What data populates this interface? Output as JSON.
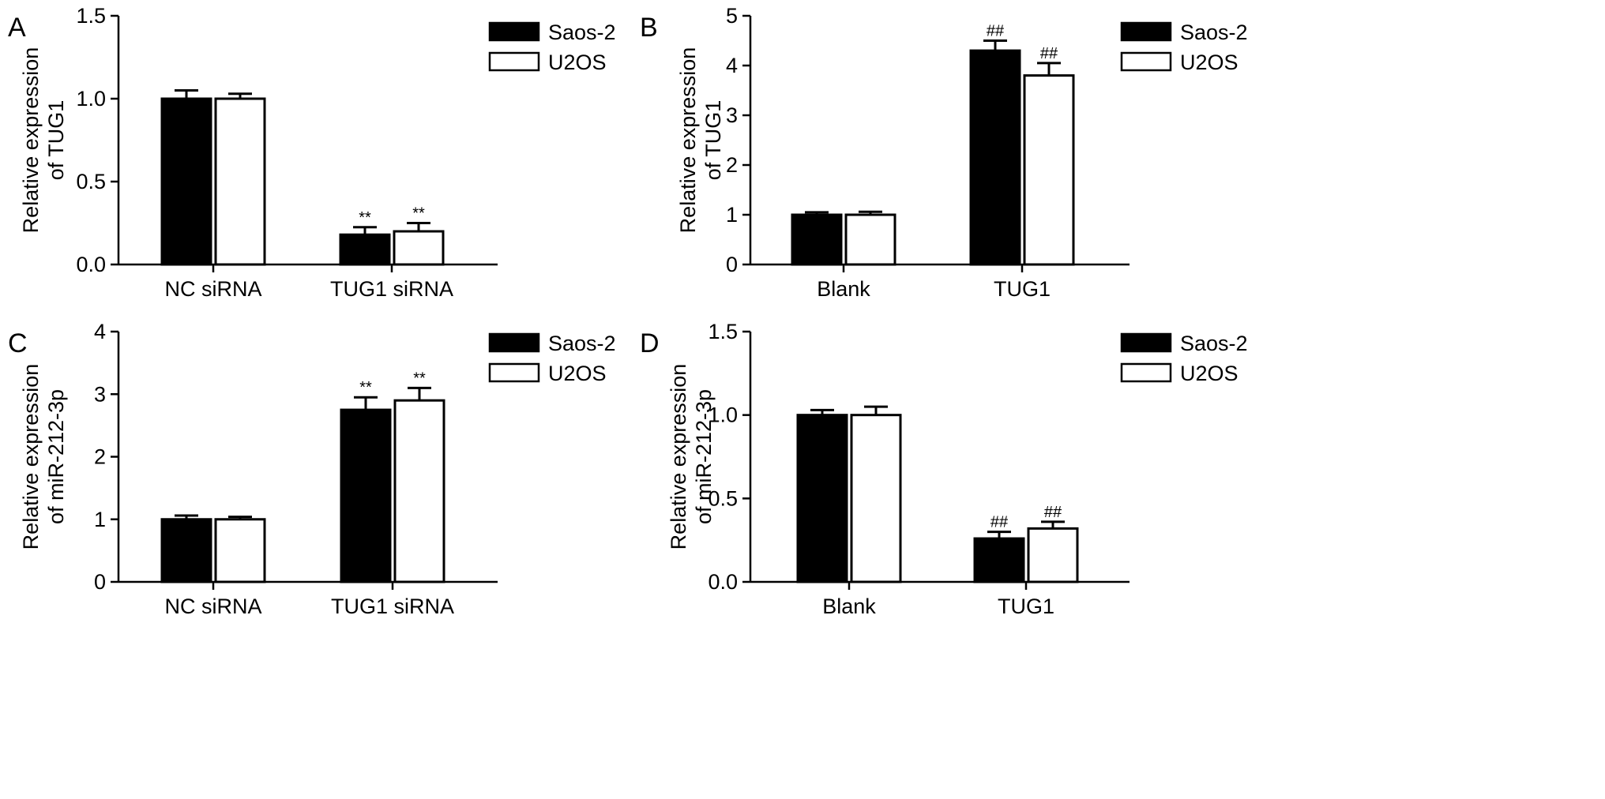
{
  "figure": {
    "panels": [
      {
        "panel_label": "A",
        "chart_data": {
          "type": "bar",
          "categories": [
            "NC siRNA",
            "TUG1 siRNA"
          ],
          "series": [
            {
              "name": "Saos-2",
              "values": [
                1.0,
                0.18
              ],
              "errors": [
                0.05,
                0.045
              ],
              "annotations": [
                "",
                "**"
              ]
            },
            {
              "name": "U2OS",
              "values": [
                1.0,
                0.2
              ],
              "errors": [
                0.03,
                0.05
              ],
              "annotations": [
                "",
                "**"
              ]
            }
          ],
          "ylabel": [
            "Relative expression",
            "of TUG1"
          ],
          "ylim": [
            0,
            1.5
          ],
          "yticks": [
            0,
            0.5,
            1.0,
            1.5
          ],
          "ytick_labels": [
            "0.0",
            "0.5",
            "1.0",
            "1.5"
          ],
          "legend_position": "top-right",
          "grid": false
        }
      },
      {
        "panel_label": "B",
        "chart_data": {
          "type": "bar",
          "categories": [
            "Blank",
            "TUG1"
          ],
          "series": [
            {
              "name": "Saos-2",
              "values": [
                1.0,
                4.3
              ],
              "errors": [
                0.05,
                0.2
              ],
              "annotations": [
                "",
                "##"
              ]
            },
            {
              "name": "U2OS",
              "values": [
                1.0,
                3.8
              ],
              "errors": [
                0.06,
                0.25
              ],
              "annotations": [
                "",
                "##"
              ]
            }
          ],
          "ylabel": [
            "Relative expression",
            "of TUG1"
          ],
          "ylim": [
            0,
            5
          ],
          "yticks": [
            0,
            1,
            2,
            3,
            4,
            5
          ],
          "ytick_labels": [
            "0",
            "1",
            "2",
            "3",
            "4",
            "5"
          ],
          "legend_position": "top-right",
          "grid": false
        }
      },
      {
        "panel_label": "C",
        "chart_data": {
          "type": "bar",
          "categories": [
            "NC siRNA",
            "TUG1 siRNA"
          ],
          "series": [
            {
              "name": "Saos-2",
              "values": [
                1.0,
                2.75
              ],
              "errors": [
                0.06,
                0.2
              ],
              "annotations": [
                "",
                "**"
              ]
            },
            {
              "name": "U2OS",
              "values": [
                1.0,
                2.9
              ],
              "errors": [
                0.04,
                0.2
              ],
              "annotations": [
                "",
                "**"
              ]
            }
          ],
          "ylabel": [
            "Relative expression",
            "of miR-212-3p"
          ],
          "ylim": [
            0,
            4
          ],
          "yticks": [
            0,
            1,
            2,
            3,
            4
          ],
          "ytick_labels": [
            "0",
            "1",
            "2",
            "3",
            "4"
          ],
          "legend_position": "top-right",
          "grid": false
        }
      },
      {
        "panel_label": "D",
        "chart_data": {
          "type": "bar",
          "categories": [
            "Blank",
            "TUG1"
          ],
          "series": [
            {
              "name": "Saos-2",
              "values": [
                1.0,
                0.26
              ],
              "errors": [
                0.03,
                0.04
              ],
              "annotations": [
                "",
                "##"
              ]
            },
            {
              "name": "U2OS",
              "values": [
                1.0,
                0.32
              ],
              "errors": [
                0.05,
                0.04
              ],
              "annotations": [
                "",
                "##"
              ]
            }
          ],
          "ylabel": [
            "Relative expression",
            "of miR-212-3p"
          ],
          "ylim": [
            0,
            1.5
          ],
          "yticks": [
            0,
            0.5,
            1.0,
            1.5
          ],
          "ytick_labels": [
            "0.0",
            "0.5",
            "1.0",
            "1.5"
          ],
          "legend_position": "top-right",
          "grid": false
        }
      }
    ],
    "colors": {
      "saos2_fill": "#000000",
      "u2os_fill": "#ffffff",
      "stroke": "#000000"
    }
  }
}
